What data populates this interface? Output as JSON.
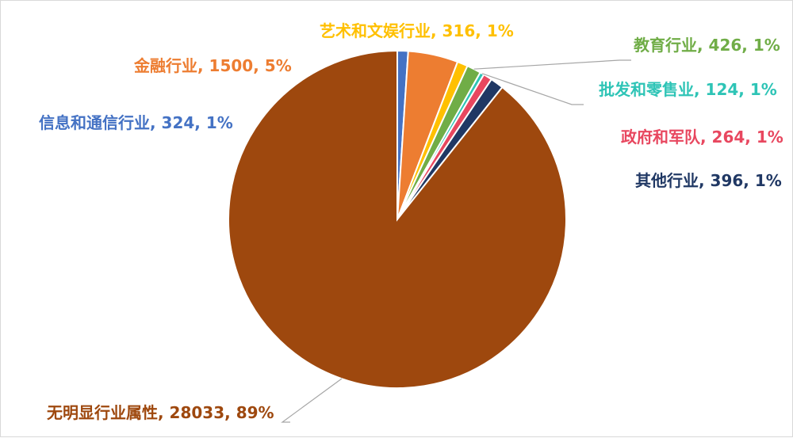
{
  "chart_data": {
    "type": "pie",
    "title": "",
    "slices": [
      {
        "name": "信息和通信行业",
        "value": 324,
        "percent": "1%",
        "color": "#4472C4",
        "label_text": "信息和通信行业, 324, 1%"
      },
      {
        "name": "金融行业",
        "value": 1500,
        "percent": "5%",
        "color": "#ED7D31",
        "label_text": "金融行业, 1500, 5%"
      },
      {
        "name": "艺术和文娱行业",
        "value": 316,
        "percent": "1%",
        "color": "#FFC000",
        "label_text": "艺术和文娱行业, 316, 1%"
      },
      {
        "name": "教育行业",
        "value": 426,
        "percent": "1%",
        "color": "#70AD47",
        "label_text": "教育行业, 426, 1%"
      },
      {
        "name": "批发和零售业",
        "value": 124,
        "percent": "1%",
        "color": "#2EC4B6",
        "label_text": "批发和零售业, 124, 1%"
      },
      {
        "name": "政府和军队",
        "value": 264,
        "percent": "1%",
        "color": "#E8475F",
        "label_text": "政府和军队, 264, 1%"
      },
      {
        "name": "其他行业",
        "value": 396,
        "percent": "1%",
        "color": "#203864",
        "label_text": "其他行业, 396, 1%"
      },
      {
        "name": "无明显行业属性",
        "value": 28033,
        "percent": "89%",
        "color": "#9E480E",
        "label_text": "无明显行业属性, 28033, 89%"
      }
    ],
    "legend": "none",
    "data_labels": "name, value, percent"
  }
}
